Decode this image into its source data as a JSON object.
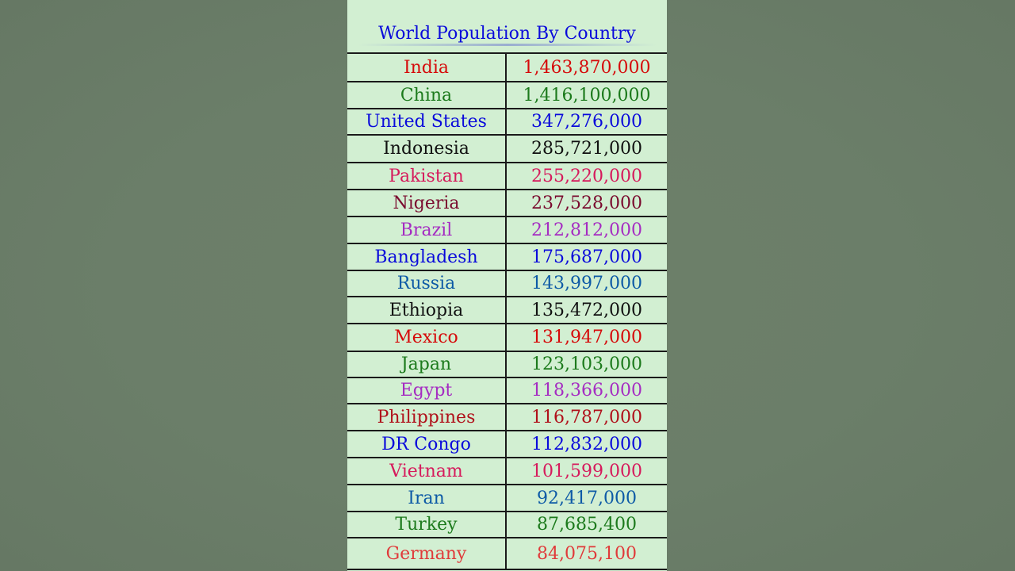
{
  "chart_data": {
    "type": "table",
    "title": "World Population By Country",
    "rows": [
      {
        "country": "India",
        "population": "1,463,870,000",
        "color": "#d60a0a"
      },
      {
        "country": "China",
        "population": "1,416,100,000",
        "color": "#1c7a1c"
      },
      {
        "country": "United States",
        "population": "347,276,000",
        "color": "#0a0adb"
      },
      {
        "country": "Indonesia",
        "population": "285,721,000",
        "color": "#111111"
      },
      {
        "country": "Pakistan",
        "population": "255,220,000",
        "color": "#d61a5c"
      },
      {
        "country": "Nigeria",
        "population": "237,528,000",
        "color": "#7a0a2e"
      },
      {
        "country": "Brazil",
        "population": "212,812,000",
        "color": "#a52cc2"
      },
      {
        "country": "Bangladesh",
        "population": "175,687,000",
        "color": "#0a0adb"
      },
      {
        "country": "Russia",
        "population": "143,997,000",
        "color": "#0d5aa6"
      },
      {
        "country": "Ethiopia",
        "population": "135,472,000",
        "color": "#111111"
      },
      {
        "country": "Mexico",
        "population": "131,947,000",
        "color": "#d60a0a"
      },
      {
        "country": "Japan",
        "population": "123,103,000",
        "color": "#1c7a1c"
      },
      {
        "country": "Egypt",
        "population": "118,366,000",
        "color": "#a52cc2"
      },
      {
        "country": "Philippines",
        "population": "116,787,000",
        "color": "#b0101a"
      },
      {
        "country": "DR Congo",
        "population": "112,832,000",
        "color": "#0a0adb"
      },
      {
        "country": "Vietnam",
        "population": "101,599,000",
        "color": "#d61a5c"
      },
      {
        "country": "Iran",
        "population": "92,417,000",
        "color": "#0d5aa6"
      },
      {
        "country": "Turkey",
        "population": "87,685,400",
        "color": "#1c7a1c"
      },
      {
        "country": "Germany",
        "population": "84,075,100",
        "color": "#e03a3a"
      }
    ]
  }
}
